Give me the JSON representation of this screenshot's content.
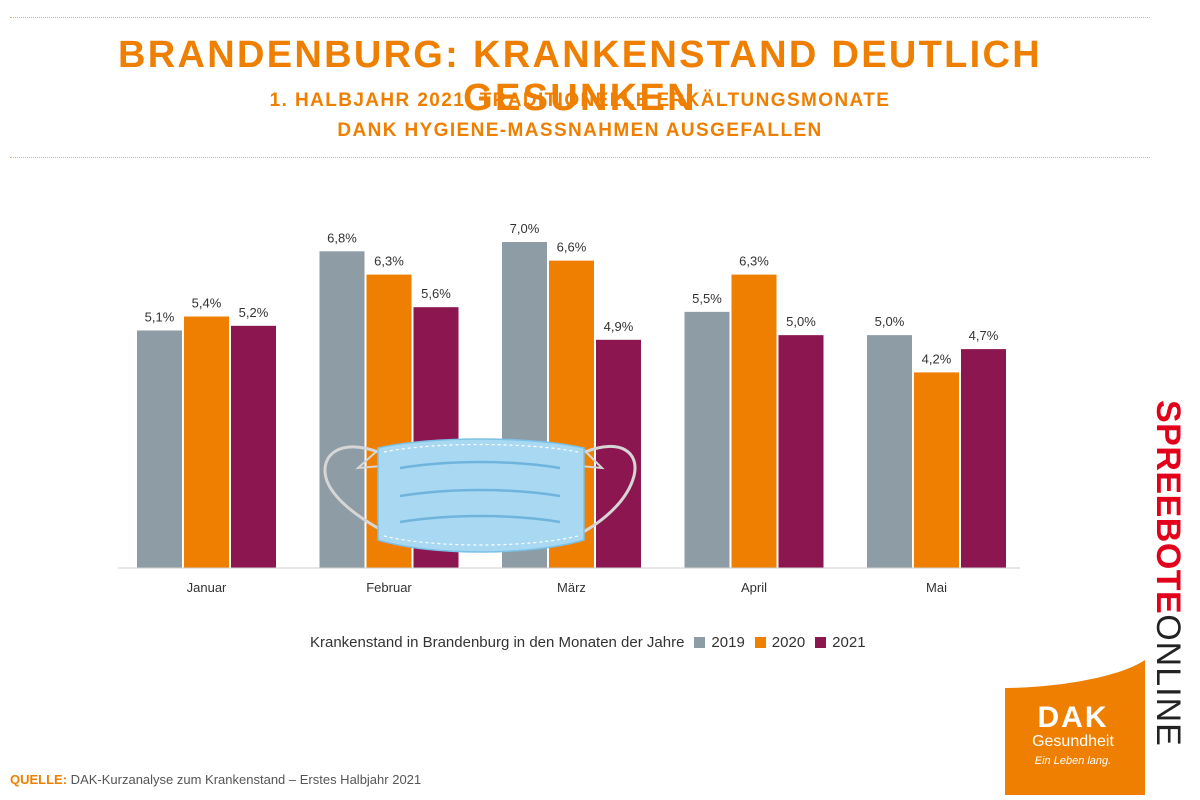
{
  "header": {
    "title": "BRANDENBURG: KRANKENSTAND DEUTLICH GESUNKEN",
    "subtitle_line1": "1. HALBJAHR 2021: TRADITIONELLE ERKÄLTUNGSMONATE",
    "subtitle_line2": "DANK HYGIENE-MASSNAHMEN AUSGEFALLEN"
  },
  "chart_data": {
    "type": "bar",
    "title": "Krankenstand in Brandenburg in den Monaten der Jahre",
    "categories": [
      "Januar",
      "Februar",
      "März",
      "April",
      "Mai"
    ],
    "series": [
      {
        "name": "2019",
        "values": [
          5.1,
          6.8,
          7.0,
          5.5,
          5.0
        ],
        "labels": [
          "5,1%",
          "6,8%",
          "7,0%",
          "5,5%",
          "5,0%"
        ],
        "color": "#8e9ca6"
      },
      {
        "name": "2020",
        "values": [
          5.4,
          6.3,
          6.6,
          6.3,
          4.2
        ],
        "labels": [
          "5,4%",
          "6,3%",
          "6,6%",
          "6,3%",
          "4,2%"
        ],
        "color": "#ee7f00"
      },
      {
        "name": "2021",
        "values": [
          5.2,
          5.6,
          4.9,
          5.0,
          4.7
        ],
        "labels": [
          "5,2%",
          "5,6%",
          "4,9%",
          "5,0%",
          "4,7%"
        ],
        "color": "#8b1650"
      }
    ],
    "xlabel": "",
    "ylabel": "",
    "ylim": [
      0,
      7.0
    ]
  },
  "legend": {
    "caption": "Krankenstand in Brandenburg in den Monaten der Jahre",
    "items": [
      {
        "label": "2019",
        "color": "#8e9ca6"
      },
      {
        "label": "2020",
        "color": "#ee7f00"
      },
      {
        "label": "2021",
        "color": "#8b1650"
      }
    ]
  },
  "footer": {
    "source_label": "QUELLE:",
    "source_text": " DAK-Kurzanalyse zum Krankenstand – Erstes Halbjahr 2021"
  },
  "branding": {
    "spreebote_bold": "SPREEBOTE",
    "spreebote_light": "ONLINE",
    "dak_big": "DAK",
    "dak_name": "Gesundheit",
    "dak_slogan": "Ein Leben lang.",
    "accent_color": "#ee7f00",
    "brand_red": "#e2001a"
  }
}
